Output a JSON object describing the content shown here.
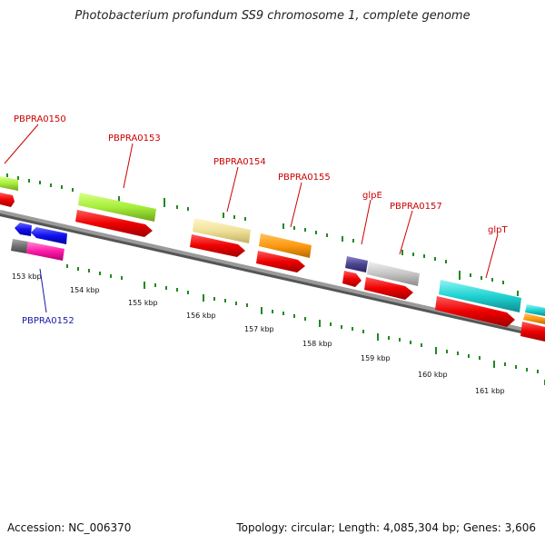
{
  "title": "Photobacterium profundum SS9 chromosome 1, complete genome",
  "accession": "Accession: NC_006370",
  "stats": "Topology: circular; Length: 4,085,304 bp; Genes: 3,606",
  "colors": {
    "backbone": "#8a8a8a",
    "tick": "#1f8a1f",
    "label_red": "#cc0000",
    "label_blue": "#1a1aaa"
  },
  "scale_labels": [
    "153 kbp",
    "154 kbp",
    "155 kbp",
    "156 kbp",
    "157 kbp",
    "158 kbp",
    "159 kbp",
    "160 kbp",
    "161 kbp"
  ],
  "gene_labels": [
    {
      "name": "PBPRA0150",
      "color": "red"
    },
    {
      "name": "PBPRA0153",
      "color": "red"
    },
    {
      "name": "PBPRA0154",
      "color": "red"
    },
    {
      "name": "PBPRA0155",
      "color": "red"
    },
    {
      "name": "glpE",
      "color": "red"
    },
    {
      "name": "PBPRA0157",
      "color": "red"
    },
    {
      "name": "glpT",
      "color": "red"
    },
    {
      "name": "PBPRA0152",
      "color": "blue"
    }
  ]
}
